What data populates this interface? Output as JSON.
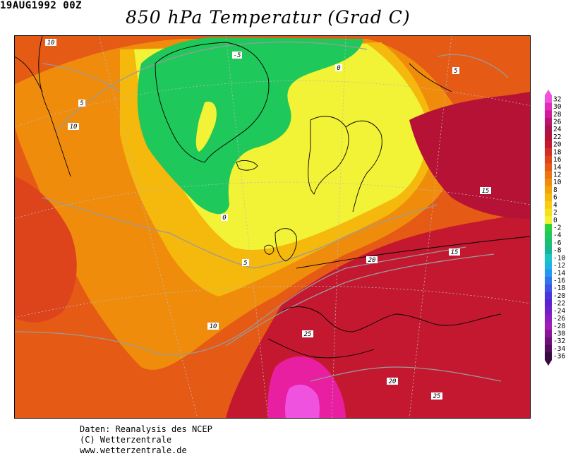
{
  "header": {
    "timestamp": "19AUG1992 00Z",
    "title": "850 hPa Temperatur (Grad C)"
  },
  "map": {
    "contour_labels": [
      "-5",
      "0",
      "5",
      "10",
      "15",
      "20",
      "25"
    ],
    "colors": {
      "hot": "#c8113a",
      "very_hot": "#e81fa0",
      "warm": "#e55a15",
      "mild": "#f2a20a",
      "cool": "#f7e21a",
      "cold": "#19d64a",
      "coast": "#000000",
      "isotherm": "#9a9a9a"
    }
  },
  "legend": {
    "labels": [
      "32",
      "30",
      "28",
      "26",
      "24",
      "22",
      "20",
      "18",
      "16",
      "14",
      "12",
      "10",
      "8",
      "6",
      "4",
      "2",
      "0",
      "-2",
      "-4",
      "-6",
      "-8",
      "-10",
      "-12",
      "-14",
      "-16",
      "-18",
      "-20",
      "-22",
      "-24",
      "-26",
      "-28",
      "-30",
      "-32",
      "-34",
      "-36"
    ],
    "colors": [
      "#f052e0",
      "#e32cb8",
      "#d01a98",
      "#b81474",
      "#a81450",
      "#b51235",
      "#c41830",
      "#d52d24",
      "#de441c",
      "#e55a15",
      "#ec7310",
      "#f08c0c",
      "#f2a20a",
      "#f5b80c",
      "#f7cc12",
      "#f8e01a",
      "#f2f236",
      "#2bd13c",
      "#1fc85a",
      "#1abf76",
      "#17b692",
      "#19c6c4",
      "#1eb4e0",
      "#2696f0",
      "#3273ee",
      "#3e54e6",
      "#4a36dc",
      "#5a22d2",
      "#7020c8",
      "#8a1ec0",
      "#a01cb6",
      "#8a1696",
      "#6e1078",
      "#540c5c",
      "#3a0842"
    ]
  },
  "credits": {
    "line1": "Daten: Reanalysis des NCEP",
    "line2": "(C) Wetterzentrale",
    "line3": "www.wetterzentrale.de"
  }
}
